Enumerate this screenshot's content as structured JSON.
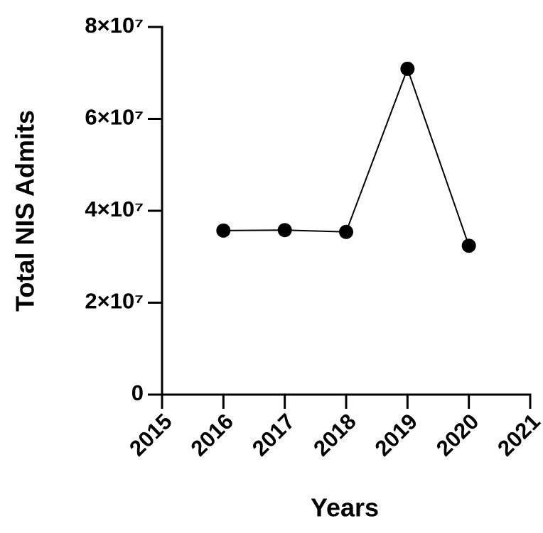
{
  "chart_data": {
    "type": "line",
    "x_label": "Years",
    "y_label": "Total NIS Admits",
    "x": [
      2016,
      2017,
      2018,
      2019,
      2020
    ],
    "values": [
      35700000,
      35800000,
      35400000,
      70900000,
      32400000
    ],
    "color": "#000000",
    "xlim": [
      2015,
      2021
    ],
    "xticks": [
      2015,
      2016,
      2017,
      2018,
      2019,
      2020,
      2021
    ],
    "ylim": [
      0,
      80000000
    ],
    "yticks": [
      0,
      {
        "value": 20000000,
        "label": "2×10⁷"
      },
      {
        "value": 40000000,
        "label": "4×10⁷"
      },
      {
        "value": 60000000,
        "label": "6×10⁷"
      },
      {
        "value": 80000000,
        "label": "8×10⁷"
      }
    ],
    "grid": false
  }
}
